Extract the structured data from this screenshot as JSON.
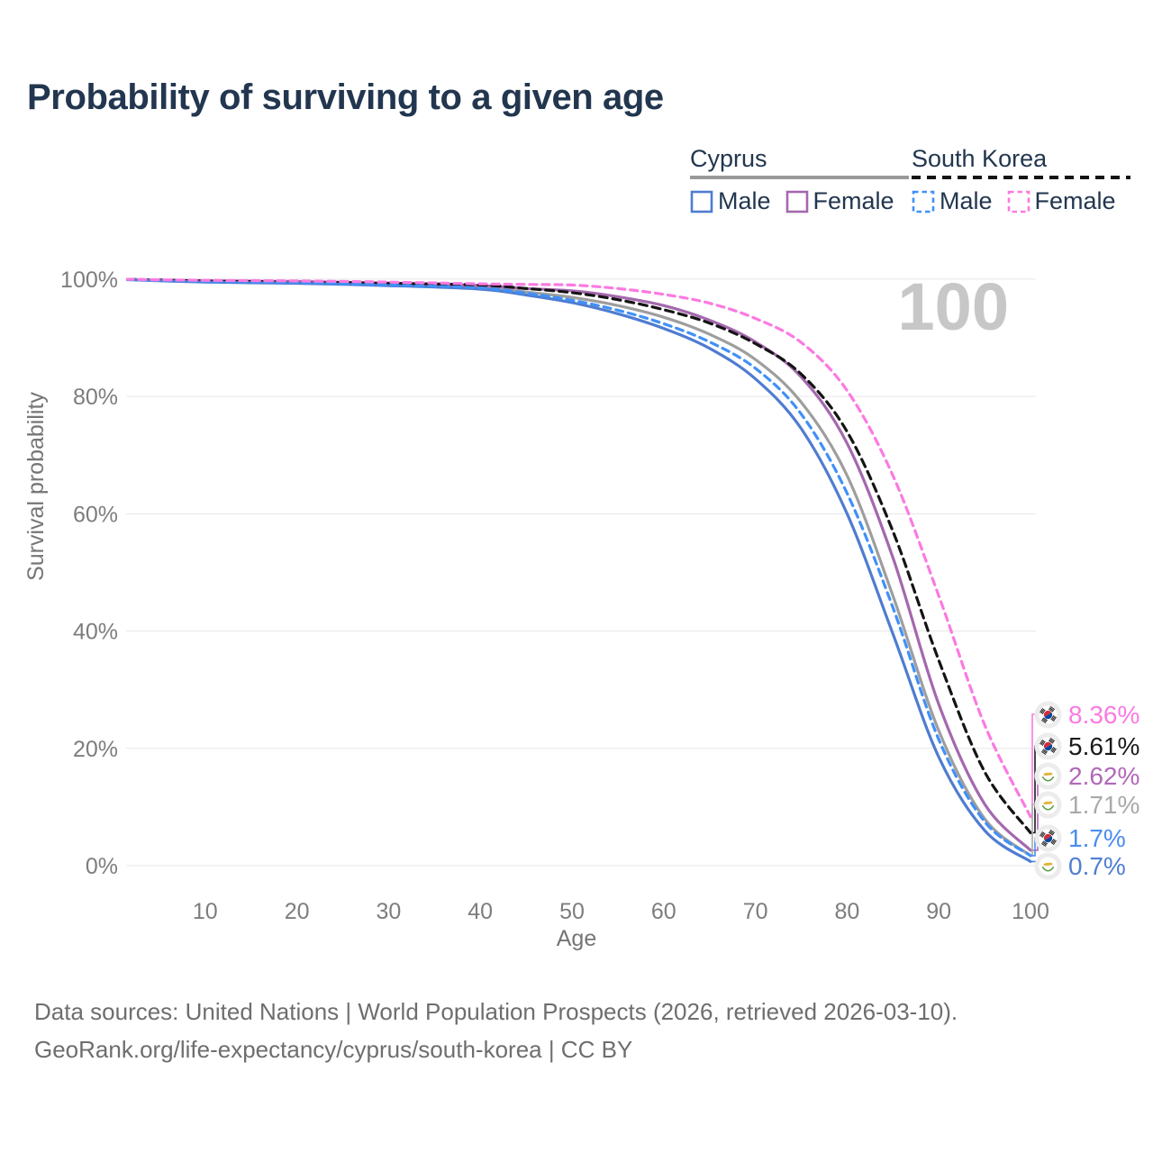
{
  "title": "Probability of surviving to a given age",
  "watermark_age": "100",
  "legend": {
    "groups": [
      {
        "name": "Cyprus",
        "line_style": "solid",
        "underline_color": "#9a9a9a",
        "items": [
          {
            "label": "Male",
            "color": "#4f7cd1"
          },
          {
            "label": "Female",
            "color": "#a468ae"
          }
        ]
      },
      {
        "name": "South Korea",
        "line_style": "dashed",
        "underline_color": "#141414",
        "items": [
          {
            "label": "Male",
            "color": "#4090f7"
          },
          {
            "label": "Female",
            "color": "#fb7ae1"
          }
        ]
      }
    ]
  },
  "chart_data": {
    "type": "line",
    "title": "Probability of surviving to a given age",
    "xlabel": "Age",
    "ylabel": "Survival probability",
    "x_ticks": [
      10,
      20,
      30,
      40,
      50,
      60,
      70,
      80,
      90,
      100
    ],
    "y_ticks": [
      0,
      20,
      40,
      60,
      80,
      100
    ],
    "y_tick_suffix": "%",
    "xlim": [
      0,
      100
    ],
    "ylim": [
      0,
      100
    ],
    "grid": "horizontal",
    "legend_position": "top-right",
    "ages": [
      0,
      10,
      20,
      30,
      40,
      45,
      50,
      55,
      60,
      65,
      70,
      75,
      80,
      85,
      90,
      95,
      100
    ],
    "series": [
      {
        "id": "cyprus-all",
        "name": "Cyprus",
        "sex": "all",
        "color": "#9e9e9e",
        "dash": null,
        "values": [
          100,
          99.6,
          99.4,
          99.1,
          98.6,
          97.8,
          96.9,
          95.5,
          93.5,
          90.6,
          86.3,
          79.0,
          66.5,
          46.0,
          23.0,
          8.0,
          1.71
        ],
        "end_label": "1.71%"
      },
      {
        "id": "cyprus-female",
        "name": "Cyprus Female",
        "sex": "female",
        "color": "#a468ae",
        "dash": null,
        "values": [
          100,
          99.7,
          99.6,
          99.3,
          98.9,
          98.4,
          98.0,
          97.0,
          95.5,
          93.0,
          89.3,
          83.3,
          72.0,
          52.5,
          27.5,
          10.5,
          2.62
        ],
        "end_label": "2.62%"
      },
      {
        "id": "south-korea-all",
        "name": "South Korea",
        "sex": "all",
        "color": "#141414",
        "dash": "9 6",
        "values": [
          100,
          99.7,
          99.5,
          99.3,
          99.0,
          98.4,
          97.7,
          96.5,
          94.8,
          92.5,
          89.0,
          83.8,
          74.0,
          57.0,
          35.0,
          16.0,
          5.61
        ],
        "end_label": "5.61%"
      },
      {
        "id": "cyprus-male",
        "name": "Cyprus Male",
        "sex": "male",
        "color": "#4f7cd1",
        "dash": null,
        "values": [
          100,
          99.5,
          99.3,
          98.9,
          98.3,
          97.3,
          96.0,
          94.1,
          91.6,
          88.2,
          83.0,
          74.5,
          60.0,
          39.5,
          18.5,
          6.0,
          0.7
        ],
        "end_label": "0.7%"
      },
      {
        "id": "south-korea-male",
        "name": "South Korea Male",
        "sex": "male",
        "color": "#4090f7",
        "dash": "8 6",
        "values": [
          100,
          99.6,
          99.4,
          99.0,
          98.5,
          97.6,
          96.4,
          94.7,
          92.4,
          89.3,
          84.8,
          77.0,
          63.5,
          44.0,
          21.5,
          7.5,
          1.7
        ],
        "end_label": "1.7%"
      },
      {
        "id": "south-korea-female",
        "name": "South Korea Female",
        "sex": "female",
        "color": "#fb7ae1",
        "dash": "8 6",
        "values": [
          100,
          99.8,
          99.7,
          99.5,
          99.2,
          99.1,
          99.0,
          98.4,
          97.4,
          95.9,
          93.3,
          89.2,
          81.0,
          66.5,
          46.0,
          24.0,
          8.36
        ],
        "end_label": "8.36%"
      }
    ]
  },
  "end_labels": [
    {
      "series": "south-korea-female",
      "value": "8.36%",
      "flag": "south-korea",
      "color": "#fb7ae1"
    },
    {
      "series": "south-korea-all",
      "value": "5.61%",
      "flag": "south-korea",
      "color": "#1a1a1a"
    },
    {
      "series": "cyprus-female",
      "value": "2.62%",
      "flag": "cyprus",
      "color": "#b168b8"
    },
    {
      "series": "cyprus-all",
      "value": "1.71%",
      "flag": "cyprus",
      "color": "#a9a9a9"
    },
    {
      "series": "south-korea-male",
      "value": "1.7%",
      "flag": "south-korea",
      "color": "#4a8cf0"
    },
    {
      "series": "cyprus-male",
      "value": "0.7%",
      "flag": "cyprus",
      "color": "#4f7ed2"
    }
  ],
  "source": {
    "line1": "Data sources: United Nations | World Population Prospects (2026, retrieved 2026-03-10).",
    "line2": "GeoRank.org/life-expectancy/cyprus/south-korea | CC BY"
  }
}
